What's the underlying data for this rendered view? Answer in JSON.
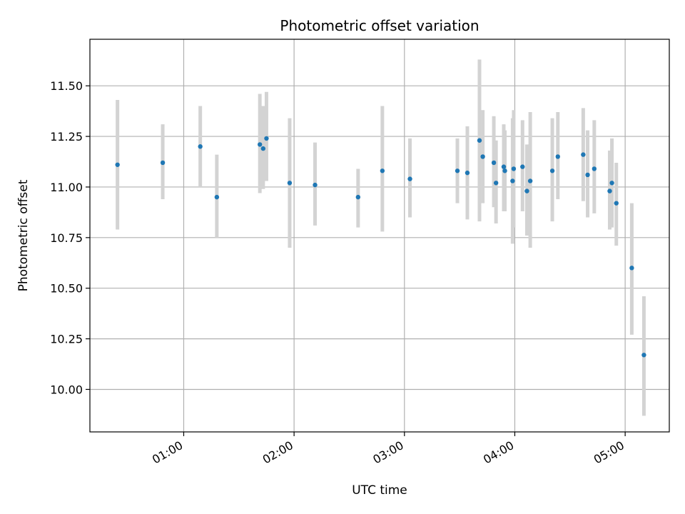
{
  "chart_data": {
    "type": "scatter",
    "title": "Photometric offset variation",
    "xlabel": "UTC time",
    "ylabel": "Photometric offset",
    "x_unit": "hours UTC",
    "xlim": [
      0.15,
      5.4
    ],
    "ylim": [
      9.79,
      11.73
    ],
    "grid": true,
    "legend": "none",
    "x_ticks": [
      {
        "value": 1,
        "label": "01:00"
      },
      {
        "value": 2,
        "label": "02:00"
      },
      {
        "value": 3,
        "label": "03:00"
      },
      {
        "value": 4,
        "label": "04:00"
      },
      {
        "value": 5,
        "label": "05:00"
      }
    ],
    "y_ticks": [
      {
        "value": 10.0,
        "label": "10.00"
      },
      {
        "value": 10.25,
        "label": "10.25"
      },
      {
        "value": 10.5,
        "label": "10.50"
      },
      {
        "value": 10.75,
        "label": "10.75"
      },
      {
        "value": 11.0,
        "label": "11.00"
      },
      {
        "value": 11.25,
        "label": "11.25"
      },
      {
        "value": 11.5,
        "label": "11.50"
      }
    ],
    "colors": {
      "point": "#1f77b4",
      "errorbar": "#d3d3d3",
      "grid": "#b0b0b0"
    },
    "series": [
      {
        "points": [
          {
            "x": 0.4,
            "y": 11.11,
            "lo": 10.79,
            "hi": 11.43
          },
          {
            "x": 0.81,
            "y": 11.12,
            "lo": 10.94,
            "hi": 11.31
          },
          {
            "x": 1.15,
            "y": 11.2,
            "lo": 11.0,
            "hi": 11.4
          },
          {
            "x": 1.3,
            "y": 10.95,
            "lo": 10.75,
            "hi": 11.16
          },
          {
            "x": 1.69,
            "y": 11.21,
            "lo": 10.97,
            "hi": 11.46
          },
          {
            "x": 1.72,
            "y": 11.19,
            "lo": 10.99,
            "hi": 11.4
          },
          {
            "x": 1.75,
            "y": 11.24,
            "lo": 11.03,
            "hi": 11.47
          },
          {
            "x": 1.96,
            "y": 11.02,
            "lo": 10.7,
            "hi": 11.34
          },
          {
            "x": 2.19,
            "y": 11.01,
            "lo": 10.81,
            "hi": 11.22
          },
          {
            "x": 2.58,
            "y": 10.95,
            "lo": 10.8,
            "hi": 11.09
          },
          {
            "x": 2.8,
            "y": 11.08,
            "lo": 10.78,
            "hi": 11.4
          },
          {
            "x": 3.05,
            "y": 11.04,
            "lo": 10.85,
            "hi": 11.24
          },
          {
            "x": 3.48,
            "y": 11.08,
            "lo": 10.92,
            "hi": 11.24
          },
          {
            "x": 3.57,
            "y": 11.07,
            "lo": 10.84,
            "hi": 11.3
          },
          {
            "x": 3.68,
            "y": 11.23,
            "lo": 10.83,
            "hi": 11.63
          },
          {
            "x": 3.71,
            "y": 11.15,
            "lo": 10.92,
            "hi": 11.38
          },
          {
            "x": 3.81,
            "y": 11.12,
            "lo": 10.9,
            "hi": 11.35
          },
          {
            "x": 3.83,
            "y": 11.02,
            "lo": 10.82,
            "hi": 11.23
          },
          {
            "x": 3.9,
            "y": 11.1,
            "lo": 10.88,
            "hi": 11.31
          },
          {
            "x": 3.91,
            "y": 11.08,
            "lo": 10.88,
            "hi": 11.28
          },
          {
            "x": 3.98,
            "y": 11.03,
            "lo": 10.72,
            "hi": 11.34
          },
          {
            "x": 3.99,
            "y": 11.09,
            "lo": 10.8,
            "hi": 11.38
          },
          {
            "x": 4.07,
            "y": 11.1,
            "lo": 10.88,
            "hi": 11.33
          },
          {
            "x": 4.11,
            "y": 10.98,
            "lo": 10.76,
            "hi": 11.21
          },
          {
            "x": 4.14,
            "y": 11.03,
            "lo": 10.7,
            "hi": 11.37
          },
          {
            "x": 4.34,
            "y": 11.08,
            "lo": 10.83,
            "hi": 11.34
          },
          {
            "x": 4.39,
            "y": 11.15,
            "lo": 10.94,
            "hi": 11.37
          },
          {
            "x": 4.62,
            "y": 11.16,
            "lo": 10.93,
            "hi": 11.39
          },
          {
            "x": 4.66,
            "y": 11.06,
            "lo": 10.85,
            "hi": 11.28
          },
          {
            "x": 4.72,
            "y": 11.09,
            "lo": 10.87,
            "hi": 11.33
          },
          {
            "x": 4.86,
            "y": 10.98,
            "lo": 10.79,
            "hi": 11.18
          },
          {
            "x": 4.88,
            "y": 11.02,
            "lo": 10.8,
            "hi": 11.24
          },
          {
            "x": 4.92,
            "y": 10.92,
            "lo": 10.71,
            "hi": 11.12
          },
          {
            "x": 5.06,
            "y": 10.6,
            "lo": 10.27,
            "hi": 10.92
          },
          {
            "x": 5.17,
            "y": 10.17,
            "lo": 9.87,
            "hi": 10.46
          }
        ]
      }
    ]
  }
}
